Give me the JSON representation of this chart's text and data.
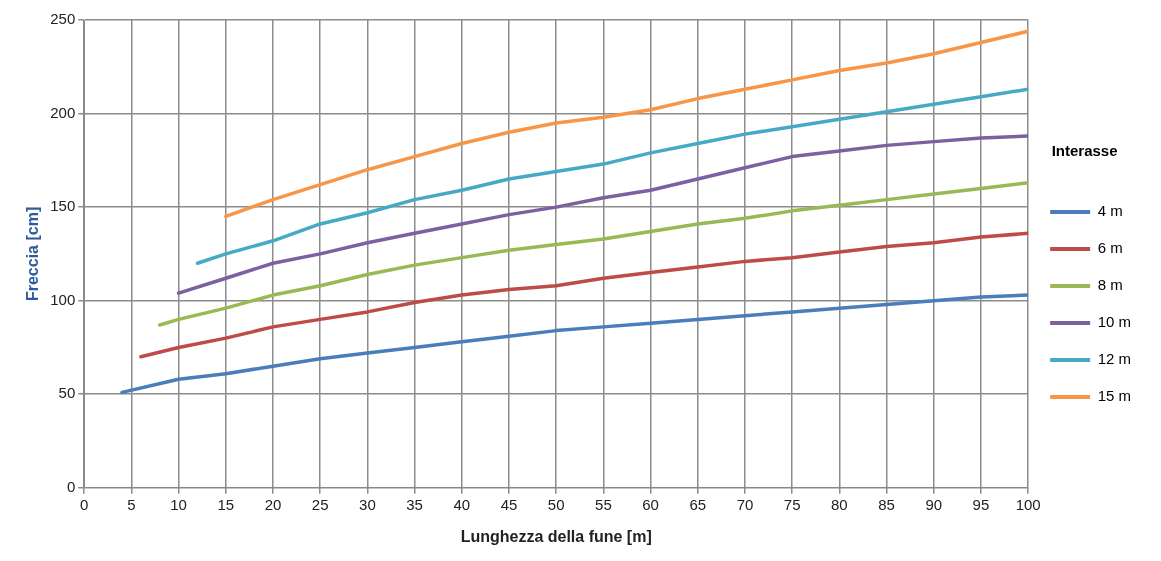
{
  "chart_data": {
    "type": "line",
    "xlabel": "Lunghezza della fune [m]",
    "ylabel": "Freccia [cm]",
    "legend_title": "Interasse",
    "legend": "right",
    "grid": true,
    "marker": "none",
    "line_style": "solid",
    "xlim": [
      0,
      100
    ],
    "xticks": [
      0,
      5,
      10,
      15,
      20,
      25,
      30,
      35,
      40,
      45,
      50,
      55,
      60,
      65,
      70,
      75,
      80,
      85,
      90,
      95,
      100
    ],
    "ylim": [
      0,
      250
    ],
    "yticks": [
      0,
      50,
      100,
      150,
      200,
      250
    ],
    "series": [
      {
        "name": "4 m",
        "color": "#4a7ebb",
        "x": [
          4,
          10,
          15,
          20,
          25,
          30,
          35,
          40,
          45,
          50,
          55,
          60,
          65,
          70,
          75,
          80,
          85,
          90,
          95,
          100
        ],
        "values": [
          51,
          58,
          61,
          65,
          69,
          72,
          75,
          78,
          81,
          84,
          86,
          88,
          90,
          92,
          94,
          96,
          98,
          100,
          102,
          103
        ]
      },
      {
        "name": "6 m",
        "color": "#be4b48",
        "x": [
          6,
          10,
          15,
          20,
          25,
          30,
          35,
          40,
          45,
          50,
          55,
          60,
          65,
          70,
          75,
          80,
          85,
          90,
          95,
          100
        ],
        "values": [
          70,
          75,
          80,
          86,
          90,
          94,
          99,
          103,
          106,
          108,
          112,
          115,
          118,
          121,
          123,
          126,
          129,
          131,
          134,
          136
        ]
      },
      {
        "name": "8 m",
        "color": "#98b954",
        "x": [
          8,
          10,
          15,
          20,
          25,
          30,
          35,
          40,
          45,
          50,
          55,
          60,
          65,
          70,
          75,
          80,
          85,
          90,
          95,
          100
        ],
        "values": [
          87,
          90,
          96,
          103,
          108,
          114,
          119,
          123,
          127,
          130,
          133,
          137,
          141,
          144,
          148,
          151,
          154,
          157,
          160,
          163
        ]
      },
      {
        "name": "10 m",
        "color": "#7d60a0",
        "x": [
          10,
          15,
          20,
          25,
          30,
          35,
          40,
          45,
          50,
          55,
          60,
          65,
          70,
          75,
          80,
          85,
          90,
          95,
          100
        ],
        "values": [
          104,
          112,
          120,
          125,
          131,
          136,
          141,
          146,
          150,
          155,
          159,
          165,
          171,
          177,
          180,
          183,
          185,
          187,
          188
        ]
      },
      {
        "name": "12 m",
        "color": "#46aac5",
        "x": [
          12,
          15,
          20,
          25,
          30,
          35,
          40,
          45,
          50,
          55,
          60,
          65,
          70,
          75,
          80,
          85,
          90,
          95,
          100
        ],
        "values": [
          120,
          125,
          132,
          141,
          147,
          154,
          159,
          165,
          169,
          173,
          179,
          184,
          189,
          193,
          197,
          201,
          205,
          209,
          213
        ]
      },
      {
        "name": "15 m",
        "color": "#f79646",
        "x": [
          15,
          20,
          25,
          30,
          35,
          40,
          45,
          50,
          55,
          60,
          65,
          70,
          75,
          80,
          85,
          90,
          95,
          100
        ],
        "values": [
          145,
          154,
          162,
          170,
          177,
          184,
          190,
          195,
          198,
          202,
          208,
          213,
          218,
          223,
          227,
          232,
          238,
          244
        ]
      }
    ]
  }
}
